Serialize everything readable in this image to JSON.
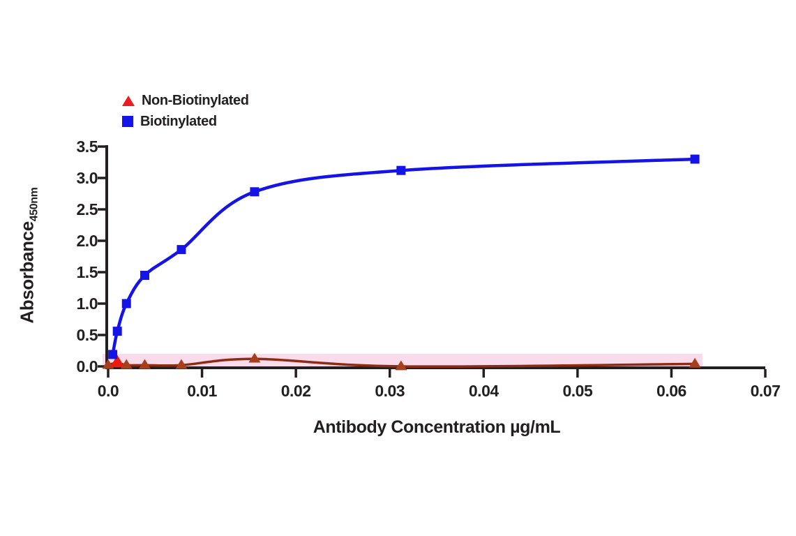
{
  "chart_data": {
    "type": "line",
    "title": "",
    "xlabel": "Antibody Concentration µg/mL",
    "ylabel": "Absorbance",
    "ylabel_subscript": "450nm",
    "xlim": [
      0,
      0.07
    ],
    "ylim": [
      0,
      3.5
    ],
    "grid": false,
    "legend_position": "top-left",
    "x_ticks": {
      "values": [
        0,
        0.01,
        0.02,
        0.03,
        0.04,
        0.05,
        0.06,
        0.07
      ],
      "labels": [
        "0.0",
        "0.01",
        "0.02",
        "0.03",
        "0.04",
        "0.05",
        "0.06",
        "0.07"
      ]
    },
    "y_ticks": {
      "values": [
        0,
        0.5,
        1.0,
        1.5,
        2.0,
        2.5,
        3.0,
        3.5
      ],
      "labels": [
        "0.0",
        "0.5",
        "1.0",
        "1.5",
        "2.0",
        "2.5",
        "3.0",
        "3.5"
      ]
    },
    "highlight_band": {
      "x0": 0,
      "x1": 0.0633,
      "y0": -0.02,
      "y1": 0.2,
      "color": "#f9d2e7",
      "opacity": 0.8
    },
    "series": [
      {
        "name": "Non-Biotinylated",
        "marker": "triangle",
        "line_color": "#8e2b13",
        "marker_color": "#a63f1c",
        "line_width": 3.5,
        "x": [
          0,
          0.00098,
          0.00195,
          0.0039,
          0.0078,
          0.0156,
          0.0312,
          0.0625
        ],
        "y": [
          0.02,
          0.06,
          0.02,
          0.02,
          0.02,
          0.12,
          0.0,
          0.04
        ],
        "marker_overrides": [
          {
            "index": 1,
            "color": "#ea1b0e",
            "scale": 1.25
          }
        ]
      },
      {
        "name": "Biotinylated",
        "marker": "square",
        "line_color": "#1414e8",
        "marker_color": "#1414e8",
        "line_width": 4.5,
        "x": [
          0.00049,
          0.00098,
          0.00195,
          0.0039,
          0.0078,
          0.0156,
          0.0312,
          0.0625
        ],
        "y": [
          0.19,
          0.56,
          1.0,
          1.45,
          1.86,
          2.78,
          3.12,
          3.3
        ],
        "marker_overrides": []
      }
    ],
    "legend": [
      {
        "label": "Non-Biotinylated",
        "marker": "triangle",
        "color": "#ed1c24"
      },
      {
        "label": "Biotinylated",
        "marker": "square",
        "color": "#1414e8"
      }
    ],
    "axis_color": "#231f20",
    "text_color": "#231f20"
  }
}
